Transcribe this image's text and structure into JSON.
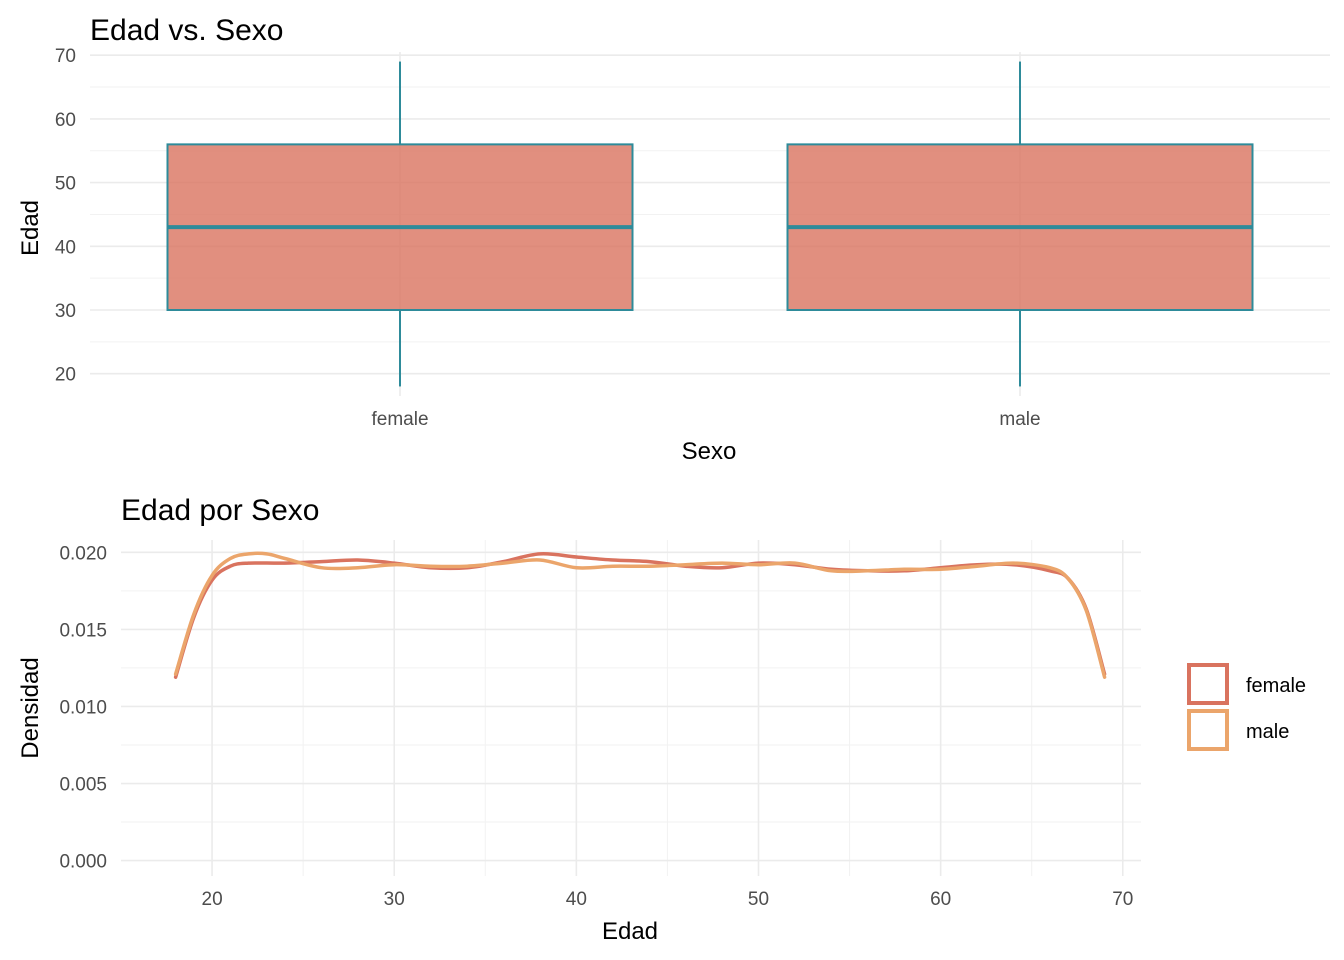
{
  "chart_data": [
    {
      "type": "box",
      "title": "Edad vs. Sexo",
      "xlabel": "Sexo",
      "ylabel": "Edad",
      "ylim": [
        16.5,
        70.5
      ],
      "yticks": [
        20,
        30,
        40,
        50,
        60,
        70
      ],
      "yticklabels": [
        "20",
        "30",
        "40",
        "50",
        "60",
        "70"
      ],
      "categories": [
        "female",
        "male"
      ],
      "boxes": [
        {
          "category": "female",
          "min": 18,
          "q1": 30,
          "median": 43,
          "q3": 56,
          "max": 69
        },
        {
          "category": "male",
          "min": 18,
          "q1": 30,
          "median": 43,
          "q3": 56,
          "max": 69
        }
      ],
      "grid": true,
      "colors": {
        "fill": "#d9735f",
        "stroke": "#2e8b9a"
      }
    },
    {
      "type": "line",
      "subtype": "density",
      "title": "Edad por Sexo",
      "xlabel": "Edad",
      "ylabel": "Densidad",
      "xlim": [
        15,
        71
      ],
      "ylim": [
        -0.001,
        0.0208
      ],
      "xticks": [
        20,
        30,
        40,
        50,
        60,
        70
      ],
      "xticklabels": [
        "20",
        "30",
        "40",
        "50",
        "60",
        "70"
      ],
      "yticks": [
        0,
        0.005,
        0.01,
        0.015,
        0.02
      ],
      "yticklabels": [
        "0.000",
        "0.005",
        "0.010",
        "0.015",
        "0.020"
      ],
      "grid": true,
      "legend": "right",
      "series": [
        {
          "name": "female",
          "color": "#d9735f",
          "x": [
            18,
            19,
            20,
            21,
            22,
            24,
            26,
            28,
            30,
            32,
            34,
            36,
            38,
            40,
            42,
            44,
            46,
            48,
            50,
            52,
            54,
            56,
            58,
            60,
            62,
            64,
            66,
            67,
            68,
            69
          ],
          "y": [
            0.0119,
            0.0158,
            0.0182,
            0.0191,
            0.0193,
            0.0193,
            0.0194,
            0.0195,
            0.0193,
            0.019,
            0.019,
            0.0194,
            0.0199,
            0.0197,
            0.0195,
            0.0194,
            0.0191,
            0.019,
            0.0193,
            0.0192,
            0.0189,
            0.0188,
            0.0188,
            0.019,
            0.0192,
            0.0192,
            0.0188,
            0.0183,
            0.0163,
            0.0121
          ]
        },
        {
          "name": "male",
          "color": "#eba56b",
          "x": [
            18,
            19,
            20,
            21,
            22,
            23,
            24,
            26,
            28,
            30,
            32,
            34,
            36,
            38,
            40,
            42,
            44,
            46,
            48,
            50,
            52,
            54,
            56,
            58,
            60,
            62,
            64,
            66,
            67,
            68,
            69
          ],
          "y": [
            0.0121,
            0.016,
            0.0185,
            0.0196,
            0.0199,
            0.0199,
            0.0196,
            0.019,
            0.019,
            0.0192,
            0.0191,
            0.0191,
            0.0193,
            0.0195,
            0.019,
            0.0191,
            0.0191,
            0.0192,
            0.0193,
            0.0192,
            0.0193,
            0.0188,
            0.0188,
            0.0189,
            0.0189,
            0.0191,
            0.0193,
            0.019,
            0.0183,
            0.0162,
            0.0119
          ]
        }
      ]
    }
  ]
}
